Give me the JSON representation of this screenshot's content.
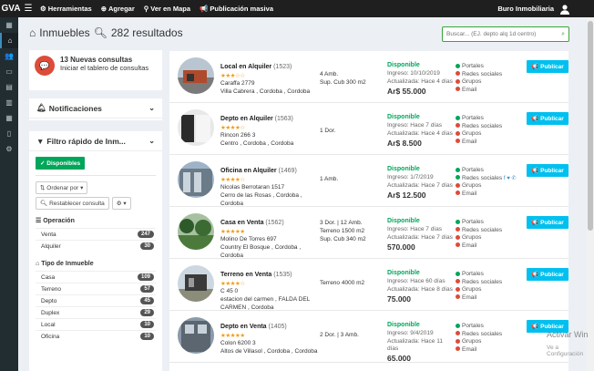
{
  "app": {
    "logo": "GVA"
  },
  "topnav": [
    {
      "icon": "gear-icon",
      "glyph": "⚙",
      "label": "Herramientas"
    },
    {
      "icon": "plus-circle-icon",
      "glyph": "⊕",
      "label": "Agregar"
    },
    {
      "icon": "map-marker-icon",
      "glyph": "⚲",
      "label": "Ver en Mapa"
    },
    {
      "icon": "megaphone-icon",
      "glyph": "📢",
      "label": "Publicación masiva"
    }
  ],
  "user": {
    "name": "Buro Inmobiliaria"
  },
  "page": {
    "title": "Inmuebles",
    "results": "282 resultados"
  },
  "search": {
    "placeholder": "Buscar... (EJ. depto alq 1d centro)"
  },
  "notice": {
    "count_text": "13 Nuevas consultas",
    "text": "Iniciar el tablero de consultas"
  },
  "notifications": {
    "title": "Notificaciones"
  },
  "filter": {
    "title": "Filtro rápido de Inm...",
    "disponibles": "Disponibles",
    "ordenar": "Ordenar por ▾",
    "restablecer": "Restablecer consulta",
    "operacion_title": "Operación",
    "operacion": [
      {
        "label": "Venta",
        "count": "247"
      },
      {
        "label": "Alquiler",
        "count": "30"
      }
    ],
    "tipo_title": "Tipo de Inmueble",
    "tipo": [
      {
        "label": "Casa",
        "count": "109"
      },
      {
        "label": "Terreno",
        "count": "57"
      },
      {
        "label": "Depto",
        "count": "45"
      },
      {
        "label": "Duplex",
        "count": "29"
      },
      {
        "label": "Local",
        "count": "10"
      },
      {
        "label": "Oficina",
        "count": "10"
      }
    ]
  },
  "publish_label": "Publicar",
  "channels": {
    "portales": "Portales",
    "redes": "Redes sociales",
    "grupos": "Grupos",
    "email": "Email"
  },
  "listings": [
    {
      "title": "Local en Alquiler",
      "code": "(1523)",
      "stars": "★★★☆☆",
      "addr1": "Caraffa 2779",
      "addr2": "Villa Cabrera , Cordoba , Cordoba",
      "addr3": "",
      "spec1": "4 Amb.",
      "spec2": "Sup. Cub 300 m2",
      "status": "Disponible",
      "ingreso": "Ingreso: 10/10/2019",
      "actualizada": "Actualizada: Hace 4 días",
      "price": "Ar$ 55.000",
      "redes_ok": false,
      "social_icons": ""
    },
    {
      "title": "Depto en Alquiler",
      "code": "(1563)",
      "stars": "★★★★☆",
      "addr1": "Rincon 266 3",
      "addr2": "Centro , Cordoba , Cordoba",
      "addr3": "",
      "spec1": "1 Dor.",
      "spec2": "",
      "status": "Disponible",
      "ingreso": "Ingreso: Hace 7 días",
      "actualizada": "Actualizada: Hace 4 días",
      "price": "Ar$ 8.500",
      "redes_ok": false,
      "social_icons": ""
    },
    {
      "title": "Oficina en Alquiler",
      "code": "(1469)",
      "stars": "★★★★☆",
      "addr1": "Nicolas Berrotaran 1517",
      "addr2": "Cerro de las Rosas , Cordoba ,",
      "addr3": "Cordoba",
      "spec1": "1 Amb.",
      "spec2": "",
      "status": "Disponible",
      "ingreso": "Ingreso: 1/7/2019",
      "actualizada": "Actualizada: Hace 7 días",
      "price": "Ar$ 12.500",
      "redes_ok": true,
      "social_icons": "f ♥ ✆"
    },
    {
      "title": "Casa en Venta",
      "code": "(1562)",
      "stars": "★★★★★",
      "addr1": "Molino De Torres 697",
      "addr2": "Country El Bosque , Cordoba ,",
      "addr3": "Cordoba",
      "spec1": "3 Dor. | 12 Amb.",
      "spec2": "Terreno 1500 m2",
      "spec3": "Sup. Cub 340 m2",
      "status": "Disponible",
      "ingreso": "Ingreso: Hace 7 días",
      "actualizada": "Actualizada: Hace 7 días",
      "price": "570.000",
      "redes_ok": false,
      "social_icons": ""
    },
    {
      "title": "Terreno en Venta",
      "code": "(1535)",
      "stars": "★★★★☆",
      "addr1": "C 45 0",
      "addr2": "estacion del carmen , FALDA DEL",
      "addr3": "CARMEN , Cordoba",
      "spec1": "Terreno 4000 m2",
      "spec2": "",
      "status": "Disponible",
      "ingreso": "Ingreso: Hace 60 días",
      "actualizada": "Actualizada: Hace 8 días",
      "price": "75.000",
      "redes_ok": false,
      "social_icons": ""
    },
    {
      "title": "Depto en Venta",
      "code": "(1405)",
      "stars": "★★★★★",
      "addr1": "Colon 6200 3",
      "addr2": "Altos de Villasol , Cordoba , Cordoba",
      "addr3": "",
      "spec1": "2 Dor. | 3 Amb.",
      "spec2": "",
      "status": "Disponible",
      "ingreso": "Ingreso: 9/4/2019",
      "actualizada": "Actualizada: Hace 11",
      "actualizada2": "días",
      "price": "65.000",
      "redes_ok": false,
      "social_icons": ""
    }
  ],
  "watermark": {
    "line1": "Activar Win",
    "line2": "Ve a Configuración"
  }
}
